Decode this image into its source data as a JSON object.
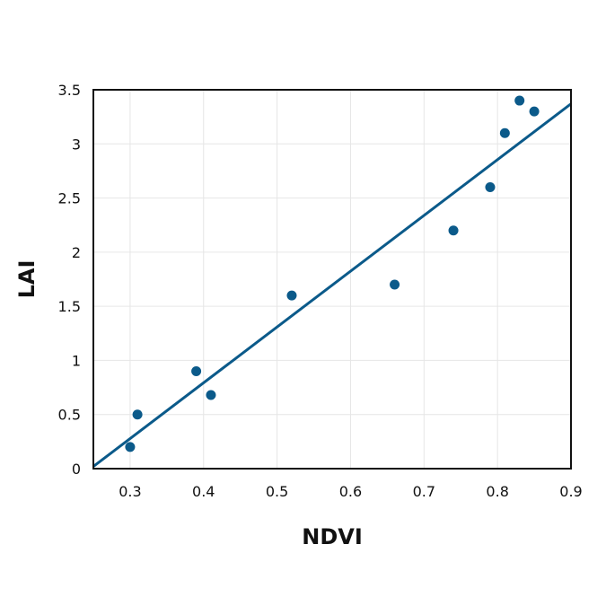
{
  "chart_data": {
    "type": "scatter",
    "title": "",
    "xlabel": "NDVI",
    "ylabel": "LAI",
    "xlim": [
      0.25,
      0.9
    ],
    "ylim": [
      0,
      3.5
    ],
    "x_ticks": [
      0.3,
      0.4,
      0.5,
      0.6,
      0.7,
      0.8,
      0.9
    ],
    "y_ticks": [
      0,
      0.5,
      1,
      1.5,
      2,
      2.5,
      3,
      3.5
    ],
    "x_tick_labels": [
      "0.3",
      "0.4",
      "0.5",
      "0.6",
      "0.7",
      "0.8",
      "0.9"
    ],
    "y_tick_labels": [
      "0",
      "0.5",
      "1",
      "1.5",
      "2",
      "2.5",
      "3",
      "3.5"
    ],
    "grid": true,
    "legend": "none",
    "series": [
      {
        "points": [
          {
            "x": 0.3,
            "y": 0.2
          },
          {
            "x": 0.31,
            "y": 0.5
          },
          {
            "x": 0.39,
            "y": 0.9
          },
          {
            "x": 0.41,
            "y": 0.68
          },
          {
            "x": 0.52,
            "y": 1.6
          },
          {
            "x": 0.66,
            "y": 1.7
          },
          {
            "x": 0.74,
            "y": 2.2
          },
          {
            "x": 0.79,
            "y": 2.6
          },
          {
            "x": 0.81,
            "y": 3.1
          },
          {
            "x": 0.83,
            "y": 3.4
          },
          {
            "x": 0.85,
            "y": 3.3
          }
        ]
      }
    ],
    "trendline": {
      "type": "linear",
      "points": [
        {
          "x": 0.25,
          "y": 0.02
        },
        {
          "x": 0.9,
          "y": 3.37
        }
      ]
    },
    "colors": {
      "points": "#0b5a8a",
      "trendline": "#0b5a8a",
      "frame": "#111111",
      "grid": "#e6e6e6"
    }
  }
}
